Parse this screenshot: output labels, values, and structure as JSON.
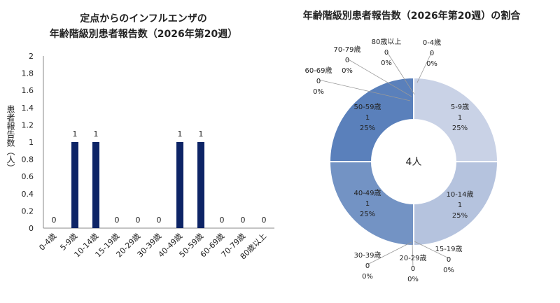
{
  "chart_data": [
    {
      "type": "bar",
      "title_lines": [
        "定点からのインフルエンザの",
        "年齢階級別患者報告数（2026年第20週）"
      ],
      "ylabel": "患者報告数（人）",
      "categories": [
        "0-4歳",
        "5-9歳",
        "10-14歳",
        "15-19歳",
        "20-29歳",
        "30-39歳",
        "40-49歳",
        "50-59歳",
        "60-69歳",
        "70-79歳",
        "80歳以上"
      ],
      "values": [
        0,
        1,
        1,
        0,
        0,
        0,
        1,
        1,
        0,
        0,
        0
      ],
      "ylim": [
        0,
        2
      ],
      "yticks": [
        "0",
        "0.2",
        "0.4",
        "0.6",
        "0.8",
        "1",
        "1.2",
        "1.4",
        "1.6",
        "1.8",
        "2"
      ],
      "grid": false,
      "bar_color": "#0d2466"
    },
    {
      "type": "pie",
      "title": "年齢階級別患者報告数（2026年第20週）の割合",
      "center_label": "4人",
      "slices": [
        {
          "label": "0-4歳",
          "value": 0,
          "percent": "0%"
        },
        {
          "label": "5-9歳",
          "value": 1,
          "percent": "25%",
          "color": "#c9d2e6"
        },
        {
          "label": "10-14歳",
          "value": 1,
          "percent": "25%",
          "color": "#b5c3de"
        },
        {
          "label": "15-19歳",
          "value": 0,
          "percent": "0%"
        },
        {
          "label": "20-29歳",
          "value": 0,
          "percent": "0%"
        },
        {
          "label": "30-39歳",
          "value": 0,
          "percent": "0%"
        },
        {
          "label": "40-49歳",
          "value": 1,
          "percent": "25%",
          "color": "#7393c4"
        },
        {
          "label": "50-59歳",
          "value": 1,
          "percent": "25%",
          "color": "#5a80bb"
        },
        {
          "label": "60-69歳",
          "value": 0,
          "percent": "0%"
        },
        {
          "label": "70-79歳",
          "value": 0,
          "percent": "0%"
        },
        {
          "label": "80歳以上",
          "value": 0,
          "percent": "0%"
        }
      ]
    }
  ]
}
